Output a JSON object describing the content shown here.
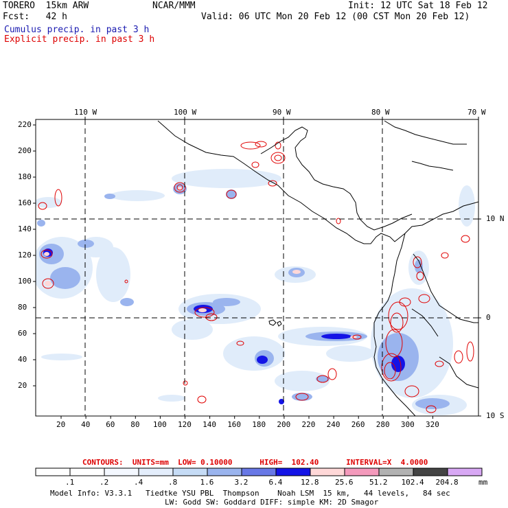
{
  "header": {
    "model": "TORERO  15km ARW",
    "org": "NCAR/MMM",
    "init": "Init: 12 UTC Sat 18 Feb 12",
    "fcst": "Fcst:   42 h",
    "valid": "Valid: 06 UTC Mon 20 Feb 12 (00 CST Mon 20 Feb 12)",
    "line_cumulus": "Cumulus precip. in past 3 h",
    "line_explicit": "Explicit precip. in past 3 h"
  },
  "colors": {
    "cumulus_text": "#1a1ab0",
    "explicit_text": "#dd0000",
    "coast": "#000000",
    "contour": "#e00000",
    "grid": "#000000"
  },
  "map": {
    "top_lon_labels": [
      "110 W",
      "100 W",
      "90 W",
      "80 W",
      "70 W"
    ],
    "right_lat_labels": [
      "10 N",
      "0",
      "10 S"
    ],
    "left_y_ticks": [
      "220",
      "200",
      "180",
      "160",
      "140",
      "120",
      "100",
      "80",
      "60",
      "40",
      "20"
    ],
    "bottom_x_ticks": [
      "20",
      "40",
      "60",
      "80",
      "100",
      "120",
      "140",
      "160",
      "180",
      "200",
      "220",
      "240",
      "260",
      "280",
      "300",
      "320"
    ]
  },
  "contours_line": "CONTOURS:  UNITS=mm  LOW= 0.10000      HIGH=  102.40      INTERVAL=X  4.0000",
  "colorbar": {
    "unit": "mm",
    "labels": [
      ".1",
      ".2",
      ".4",
      ".8",
      "1.6",
      "3.2",
      "6.4",
      "12.8",
      "25.6",
      "51.2",
      "102.4",
      "204.8"
    ],
    "colors": [
      "#ffffff",
      "#ffffff",
      "#f4f8ff",
      "#e4eefc",
      "#c6dcf6",
      "#9ab4ee",
      "#6878e6",
      "#1414e6",
      "#ffd8d8",
      "#f49abc",
      "#b2b2b2",
      "#444444",
      "#d8a8f4"
    ]
  },
  "footer": {
    "line1": "Model Info: V3.3.1   Tiedtke YSU PBL  Thompson    Noah LSM  15 km,   44 levels,   84 sec",
    "line2": "LW: Godd SW: Goddard DIFF: simple KM: 2D Smagor"
  }
}
